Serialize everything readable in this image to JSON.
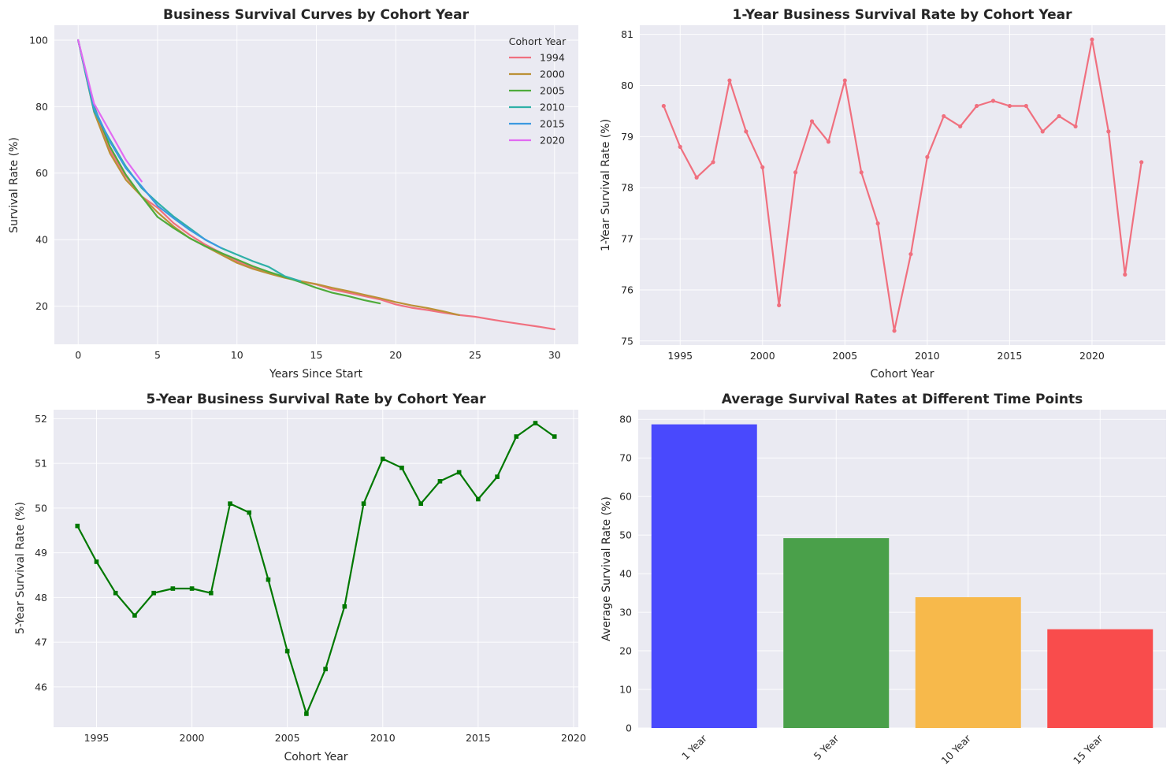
{
  "chart_data": [
    {
      "type": "line",
      "title": "Business Survival Curves by Cohort Year",
      "xlabel": "Years Since Start",
      "ylabel": "Survival Rate (%)",
      "xlim": [
        -1.5,
        31.5
      ],
      "ylim": [
        8.5,
        104.5
      ],
      "xticks": [
        0,
        5,
        10,
        15,
        20,
        25,
        30
      ],
      "yticks": [
        20,
        40,
        60,
        80,
        100
      ],
      "grid": true,
      "legend": {
        "title": "Cohort Year",
        "position": "top-right"
      },
      "series": [
        {
          "name": "1994",
          "color": "#f0707f",
          "x": [
            0,
            1,
            2,
            3,
            4,
            5,
            6,
            7,
            8,
            9,
            10,
            11,
            12,
            13,
            14,
            15,
            16,
            17,
            18,
            19,
            20,
            21,
            22,
            23,
            24,
            25,
            26,
            27,
            28,
            29,
            30
          ],
          "y": [
            100,
            79.6,
            67,
            59,
            53,
            49.6,
            45,
            41.5,
            38.5,
            36,
            33.5,
            31.5,
            30,
            28.8,
            27.5,
            26.5,
            25,
            24,
            23,
            22,
            20.5,
            19.5,
            18.8,
            18,
            17.3,
            16.8,
            16,
            15.2,
            14.5,
            13.8,
            13
          ]
        },
        {
          "name": "2000",
          "color": "#bb9137",
          "x": [
            0,
            1,
            2,
            3,
            4,
            5,
            6,
            7,
            8,
            9,
            10,
            11,
            12,
            13,
            14,
            15,
            16,
            17,
            18,
            19,
            20,
            21,
            22,
            23,
            24
          ],
          "y": [
            100,
            78.4,
            66,
            58,
            53,
            48.2,
            44,
            40.5,
            38,
            35.5,
            33,
            31.2,
            29.8,
            28.5,
            27.5,
            26.6,
            25.5,
            24.5,
            23.4,
            22.4,
            21.2,
            20.2,
            19.4,
            18.4,
            17.3
          ]
        },
        {
          "name": "2005",
          "color": "#4fab3b",
          "x": [
            0,
            1,
            2,
            3,
            4,
            5,
            6,
            7,
            8,
            9,
            10,
            11,
            12,
            13,
            14,
            15,
            16,
            17,
            18,
            19
          ],
          "y": [
            100,
            80.1,
            68,
            59.5,
            53,
            46.8,
            43.5,
            40.5,
            38,
            36,
            34,
            32,
            30.3,
            28.8,
            27.2,
            25.5,
            24,
            23,
            21.8,
            20.8
          ]
        },
        {
          "name": "2010",
          "color": "#2fb0a7",
          "x": [
            0,
            1,
            2,
            3,
            4,
            5,
            6,
            7,
            8,
            9,
            10,
            11,
            12,
            13,
            14
          ],
          "y": [
            100,
            78.6,
            70,
            62,
            55.5,
            51.1,
            47,
            43.5,
            40,
            37.5,
            35.5,
            33.5,
            31.8,
            29,
            27.5
          ]
        },
        {
          "name": "2015",
          "color": "#3b99e0",
          "x": [
            0,
            1,
            2,
            3,
            4,
            5,
            6,
            7,
            8,
            9
          ],
          "y": [
            100,
            79.6,
            69.5,
            61.5,
            56,
            50.2,
            46.5,
            43,
            40,
            37.5
          ]
        },
        {
          "name": "2020",
          "color": "#e26af2",
          "x": [
            0,
            1,
            2,
            3,
            4
          ],
          "y": [
            100,
            80.9,
            72.5,
            64,
            57.5
          ]
        }
      ]
    },
    {
      "type": "line",
      "title": "1-Year Business Survival Rate by Cohort Year",
      "xlabel": "Cohort Year",
      "ylabel": "1-Year Survival Rate (%)",
      "xlim": [
        1992.55,
        2024.45
      ],
      "ylim": [
        74.92,
        81.18
      ],
      "xticks": [
        1995,
        2000,
        2005,
        2010,
        2015,
        2020
      ],
      "yticks": [
        75,
        76,
        77,
        78,
        79,
        80,
        81
      ],
      "grid": true,
      "series": [
        {
          "color": "#f0707f",
          "marker": "circle",
          "x": [
            1994,
            1995,
            1996,
            1997,
            1998,
            1999,
            2000,
            2001,
            2002,
            2003,
            2004,
            2005,
            2006,
            2007,
            2008,
            2009,
            2010,
            2011,
            2012,
            2013,
            2014,
            2015,
            2016,
            2017,
            2018,
            2019,
            2020,
            2021,
            2022,
            2023
          ],
          "y": [
            79.6,
            78.8,
            78.2,
            78.5,
            80.1,
            79.1,
            78.4,
            75.7,
            78.3,
            79.3,
            78.9,
            80.1,
            78.3,
            77.3,
            75.2,
            76.7,
            78.6,
            79.4,
            79.2,
            79.6,
            79.7,
            79.6,
            79.6,
            79.1,
            79.4,
            79.2,
            80.9,
            79.1,
            76.3,
            78.5
          ]
        }
      ]
    },
    {
      "type": "line",
      "title": "5-Year Business Survival Rate by Cohort Year",
      "xlabel": "Cohort Year",
      "ylabel": "5-Year Survival Rate (%)",
      "xlim": [
        1992.75,
        2020.25
      ],
      "ylim": [
        45.1,
        52.2
      ],
      "xticks": [
        1995,
        2000,
        2005,
        2010,
        2015,
        2020
      ],
      "yticks": [
        46,
        47,
        48,
        49,
        50,
        51,
        52
      ],
      "grid": true,
      "series": [
        {
          "color": "#007800",
          "marker": "square",
          "x": [
            1994,
            1995,
            1996,
            1997,
            1998,
            1999,
            2000,
            2001,
            2002,
            2003,
            2004,
            2005,
            2006,
            2007,
            2008,
            2009,
            2010,
            2011,
            2012,
            2013,
            2014,
            2015,
            2016,
            2017,
            2018,
            2019
          ],
          "y": [
            49.6,
            48.8,
            48.1,
            47.6,
            48.1,
            48.2,
            48.2,
            48.1,
            50.1,
            49.9,
            48.4,
            46.8,
            45.4,
            46.4,
            47.8,
            50.1,
            51.1,
            50.9,
            50.1,
            50.6,
            50.8,
            50.2,
            50.7,
            51.6,
            51.9,
            51.6
          ]
        }
      ]
    },
    {
      "type": "bar",
      "title": "Average Survival Rates at Different Time Points",
      "xlabel": "",
      "ylabel": "Average Survival Rate (%)",
      "ylim": [
        0,
        82.5
      ],
      "yticks": [
        0,
        10,
        20,
        30,
        40,
        50,
        60,
        70,
        80
      ],
      "grid": true,
      "categories": [
        "1 Year",
        "5 Year",
        "10 Year",
        "15 Year"
      ],
      "values": [
        78.7,
        49.2,
        33.9,
        25.6
      ],
      "colors": [
        "#4545fd",
        "#469e46",
        "#f7b847",
        "#f94848"
      ]
    }
  ]
}
